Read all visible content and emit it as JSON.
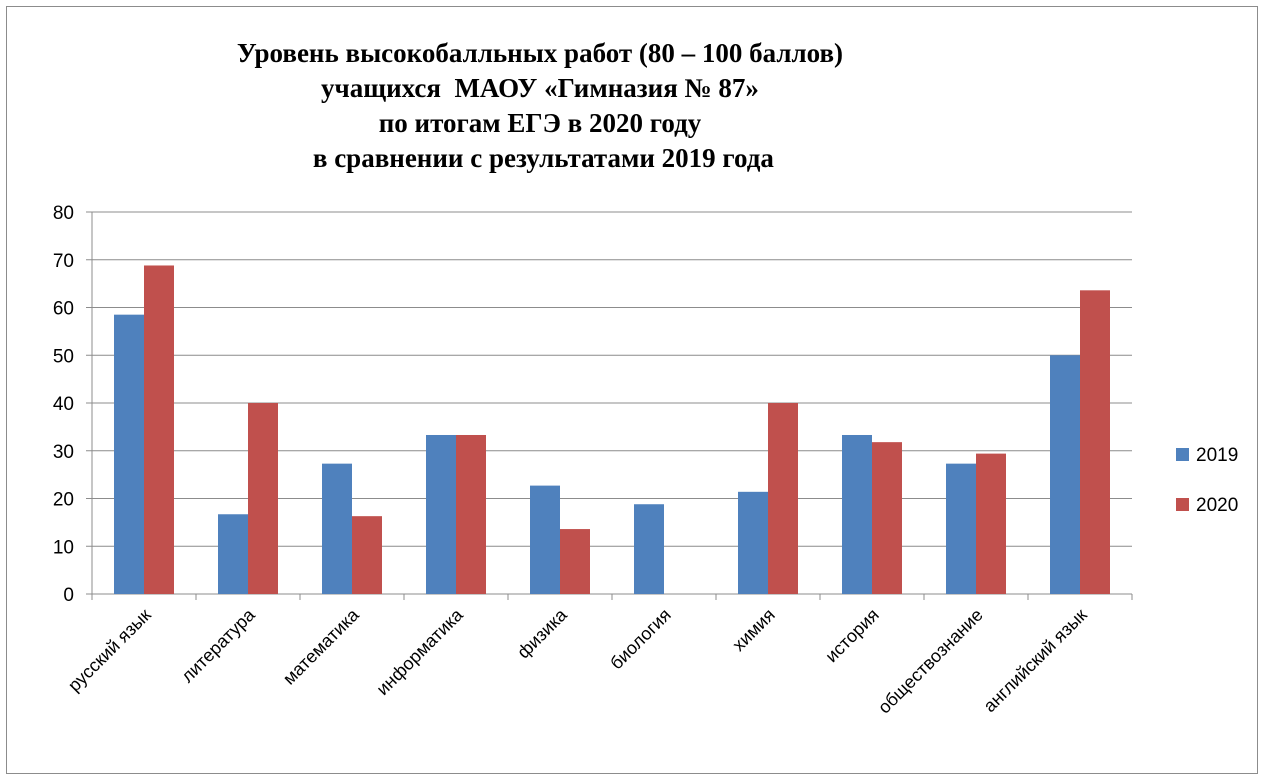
{
  "chart_data": {
    "type": "bar",
    "title_lines": [
      "Уровень высокобалльных работ (80 – 100 баллов)",
      "учащихся  МАОУ «Гимназия № 87»",
      "по итогам ЕГЭ в 2020 году",
      " в сравнении с результатами 2019 года"
    ],
    "categories": [
      "русский язык",
      "литература",
      "математика",
      "информатика",
      "физика",
      "биология",
      "химия",
      "история",
      "обществознание",
      "английский язык"
    ],
    "series": [
      {
        "name": "2019",
        "color": "#4f81bd",
        "values": [
          58.5,
          16.7,
          27.3,
          33.3,
          22.7,
          18.8,
          21.4,
          33.3,
          27.3,
          50
        ]
      },
      {
        "name": "2020",
        "color": "#c0504d",
        "values": [
          68.8,
          40,
          16.3,
          33.3,
          13.6,
          0,
          40,
          31.8,
          29.4,
          63.6
        ]
      }
    ],
    "ylim": [
      0,
      80
    ],
    "yticks": [
      0,
      10,
      20,
      30,
      40,
      50,
      60,
      70,
      80
    ],
    "grid": true,
    "legend_position": "right"
  }
}
